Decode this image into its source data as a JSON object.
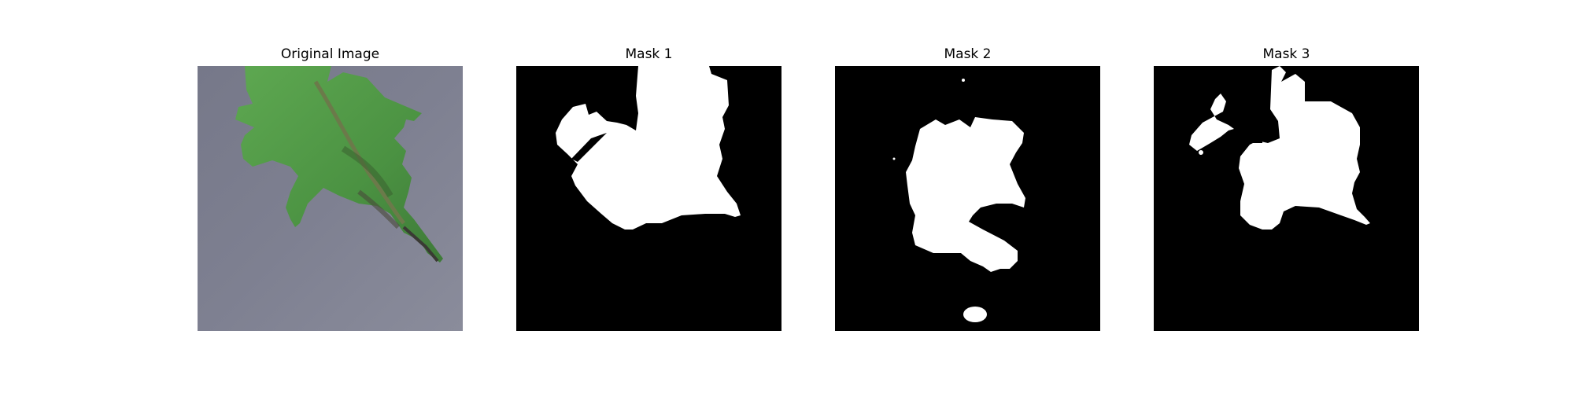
{
  "panels": [
    {
      "title": "Original Image"
    },
    {
      "title": "Mask 1"
    },
    {
      "title": "Mask 2"
    },
    {
      "title": "Mask 3"
    }
  ],
  "colors": {
    "background": "#ffffff",
    "mask_background": "#000000",
    "mask_foreground": "#ffffff",
    "leaf_green": "#4e9a45",
    "surface_gray": "#7c7e8e"
  }
}
